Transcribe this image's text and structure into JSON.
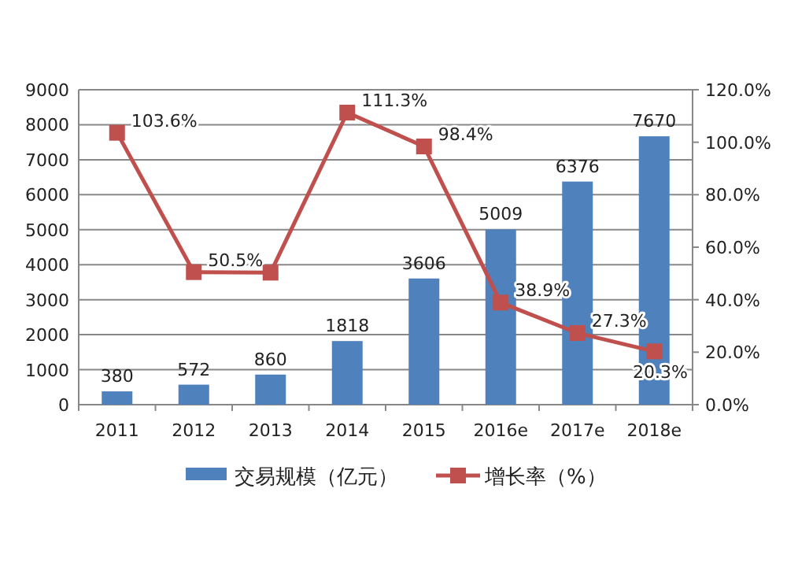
{
  "chart_data": {
    "type": "bar",
    "categories": [
      "2011",
      "2012",
      "2013",
      "2014",
      "2015",
      "2016e",
      "2017e",
      "2018e"
    ],
    "series": [
      {
        "name": "交易规模（亿元）",
        "color": "#4f81bd",
        "values": [
          380,
          572,
          860,
          1818,
          3606,
          5009,
          6376,
          7670
        ],
        "data_labels": true
      },
      {
        "name": "增长率（%）",
        "type": "line",
        "axis": "y2",
        "color": "#c0504d",
        "marker": "square",
        "values": [
          103.6,
          50.5,
          50.3,
          111.3,
          98.4,
          38.9,
          27.3,
          20.3
        ],
        "value_labels": [
          "103.6%",
          "50.5%",
          null,
          "111.3%",
          "98.4%",
          "38.9%",
          "27.3%",
          "20.3%"
        ]
      }
    ],
    "ylim": [
      0,
      9000
    ],
    "yticks": [
      0,
      1000,
      2000,
      3000,
      4000,
      5000,
      6000,
      7000,
      8000,
      9000
    ],
    "y2lim": [
      0,
      120
    ],
    "y2ticks": [
      {
        "value": 0,
        "label": "0.0%"
      },
      {
        "value": 20,
        "label": "20.0%"
      },
      {
        "value": 40,
        "label": "40.0%"
      },
      {
        "value": 60,
        "label": "60.0%"
      },
      {
        "value": 80,
        "label": "80.0%"
      },
      {
        "value": 100,
        "label": "100.0%"
      },
      {
        "value": 120,
        "label": "120.0%"
      }
    ],
    "grid": "y",
    "legend": "bottom"
  }
}
